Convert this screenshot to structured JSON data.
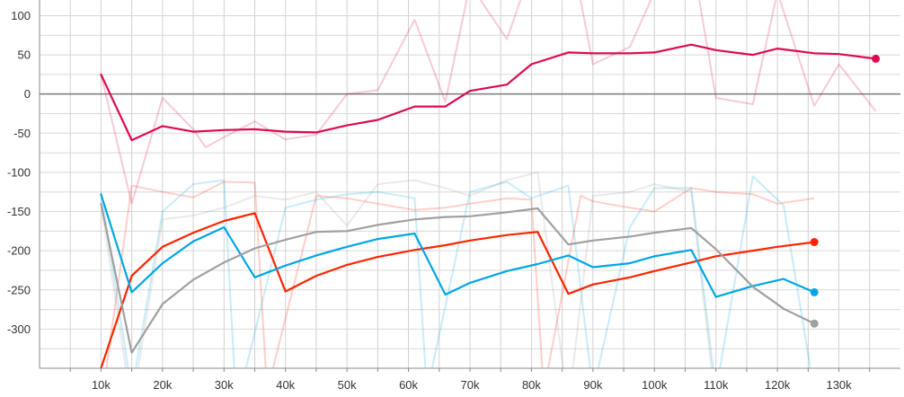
{
  "chart_data": {
    "type": "line",
    "title": "",
    "xlabel": "",
    "ylabel": "",
    "xlim": [
      0,
      140000
    ],
    "ylim": [
      -350,
      120
    ],
    "x_ticks": [
      10000,
      20000,
      30000,
      40000,
      50000,
      60000,
      70000,
      80000,
      90000,
      100000,
      110000,
      120000,
      130000
    ],
    "x_tick_labels": [
      "10k",
      "20k",
      "30k",
      "40k",
      "50k",
      "60k",
      "70k",
      "80k",
      "90k",
      "100k",
      "110k",
      "120k",
      "130k"
    ],
    "y_ticks": [
      100,
      50,
      0,
      -50,
      -100,
      -150,
      -200,
      -250,
      -300
    ],
    "y_tick_labels": [
      "100",
      "50",
      "0",
      "-50",
      "-100",
      "-150",
      "-200",
      "-250",
      "-300"
    ],
    "grid": true,
    "legend": "none",
    "series": [
      {
        "color": "#dc0a50",
        "raw_x": [
          10000,
          15000,
          20000,
          25000,
          27000,
          30000,
          35000,
          40000,
          45000,
          50000,
          55000,
          61000,
          66000,
          70000,
          76000,
          80000,
          86000,
          90000,
          96000,
          100000,
          106000,
          110000,
          116000,
          120000,
          126000,
          130000,
          136000
        ],
        "raw_y": [
          25,
          -140,
          -5,
          -45,
          -68,
          -55,
          -35,
          -58,
          -52,
          0,
          5,
          95,
          -10,
          140,
          70,
          160,
          200,
          38,
          60,
          130,
          180,
          -5,
          -13,
          130,
          -15,
          38,
          -22
        ],
        "x": [
          10000,
          15000,
          20000,
          25000,
          30000,
          35000,
          40000,
          45000,
          50000,
          55000,
          61000,
          66000,
          70000,
          76000,
          80000,
          86000,
          90000,
          96000,
          100000,
          106000,
          110000,
          116000,
          120000,
          126000,
          130000,
          136000
        ],
        "y": [
          25,
          -59,
          -41,
          -48,
          -46,
          -45,
          -48,
          -49,
          -40,
          -33,
          -16,
          -16,
          4,
          12,
          38,
          53,
          52,
          52,
          53,
          63,
          56,
          50,
          58,
          52,
          51,
          45
        ]
      },
      {
        "color": "#ff2400",
        "raw_x": [
          10000,
          15000,
          20000,
          25000,
          30000,
          35000,
          37000,
          45000,
          50000,
          55000,
          61000,
          66000,
          70000,
          76000,
          80000,
          82000,
          88000,
          90000,
          96000,
          100000,
          106000,
          110000,
          116000,
          120000,
          126000
        ],
        "raw_y": [
          -400,
          -117,
          -125,
          -132,
          -112,
          -113,
          -380,
          -130,
          -133,
          -140,
          -148,
          -145,
          -140,
          -133,
          -135,
          -380,
          -130,
          -137,
          -145,
          -150,
          -120,
          -125,
          -128,
          -140,
          -133
        ],
        "x": [
          10000,
          15000,
          20000,
          25000,
          30000,
          35000,
          40000,
          45000,
          50000,
          55000,
          61000,
          66000,
          70000,
          76000,
          81000,
          86000,
          90000,
          96000,
          100000,
          106000,
          110000,
          116000,
          120000,
          126000
        ],
        "y": [
          -350,
          -232,
          -195,
          -177,
          -162,
          -152,
          -252,
          -232,
          -218,
          -208,
          -199,
          -193,
          -187,
          -180,
          -176,
          -255,
          -243,
          -234,
          -226,
          -215,
          -207,
          -200,
          -195,
          -189
        ]
      },
      {
        "color": "#00a7e3",
        "raw_x": [
          10000,
          15000,
          20000,
          25000,
          30000,
          32000,
          40000,
          45000,
          50000,
          55000,
          61000,
          63000,
          70000,
          76000,
          80000,
          86000,
          90000,
          96000,
          100000,
          106000,
          110000,
          116000,
          121000,
          126000
        ],
        "raw_y": [
          -126,
          -380,
          -150,
          -115,
          -110,
          -400,
          -145,
          -135,
          -128,
          -125,
          -133,
          -380,
          -125,
          -112,
          -133,
          -117,
          -380,
          -170,
          -120,
          -120,
          -380,
          -105,
          -142,
          -380
        ],
        "x": [
          10000,
          15000,
          20000,
          25000,
          30000,
          35000,
          40000,
          45000,
          50000,
          55000,
          61000,
          66000,
          70000,
          76000,
          81000,
          86000,
          90000,
          96000,
          100000,
          106000,
          110000,
          116000,
          121000,
          126000
        ],
        "y": [
          -128,
          -253,
          -216,
          -188,
          -170,
          -234,
          -219,
          -206,
          -195,
          -185,
          -178,
          -256,
          -241,
          -226,
          -217,
          -206,
          -221,
          -216,
          -207,
          -199,
          -259,
          -245,
          -236,
          -253
        ]
      },
      {
        "color": "#a0a0a0",
        "raw_x": [
          10000,
          15000,
          20000,
          25000,
          30000,
          35000,
          40000,
          45000,
          50000,
          55000,
          61000,
          66000,
          70000,
          76000,
          81000,
          86000,
          90000,
          96000,
          100000,
          106000,
          110000
        ],
        "raw_y": [
          -140,
          -400,
          -160,
          -155,
          -145,
          -130,
          -135,
          -125,
          -168,
          -115,
          -110,
          -120,
          -130,
          -110,
          -100,
          -400,
          -130,
          -125,
          -115,
          -125,
          -400
        ],
        "x": [
          10000,
          15000,
          20000,
          25000,
          30000,
          35000,
          40000,
          45000,
          50000,
          55000,
          61000,
          66000,
          70000,
          76000,
          81000,
          86000,
          90000,
          96000,
          100000,
          106000,
          110000,
          116000,
          121000,
          126000
        ],
        "y": [
          -140,
          -330,
          -268,
          -237,
          -215,
          -197,
          -186,
          -176,
          -175,
          -167,
          -160,
          -157,
          -156,
          -151,
          -146,
          -192,
          -187,
          -182,
          -177,
          -171,
          -198,
          -246,
          -274,
          -293
        ]
      }
    ]
  }
}
